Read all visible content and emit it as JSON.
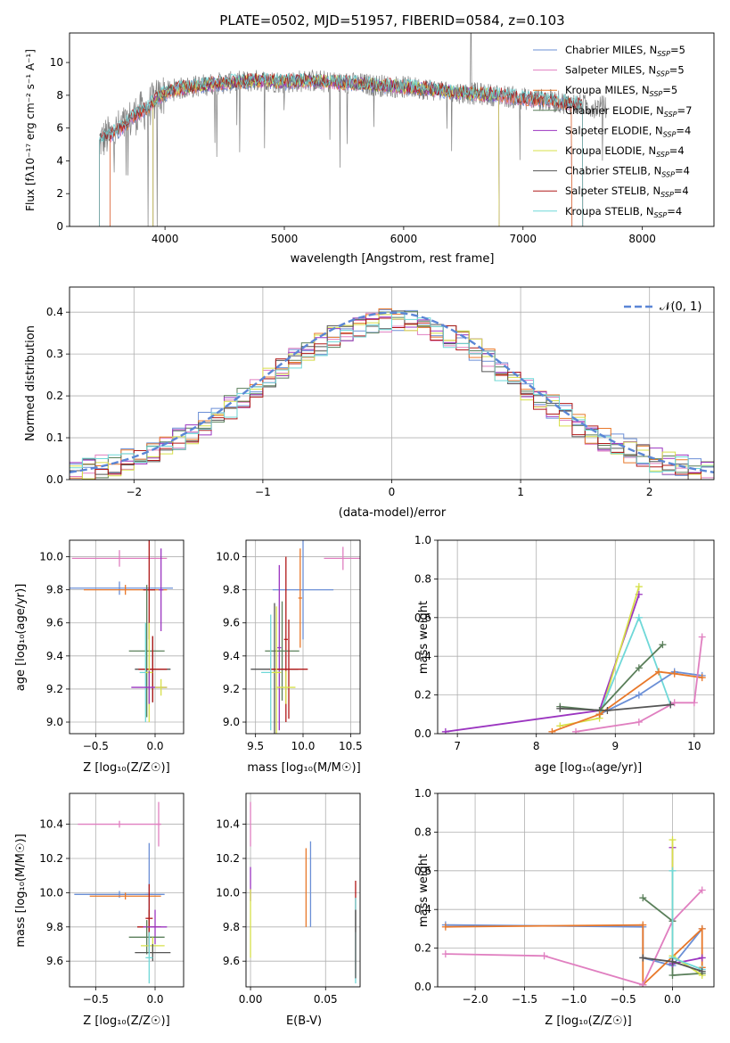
{
  "title": "PLATE=0502, MJD=51957, FIBERID=0584, z=0.103",
  "colors": {
    "Chabrier MILES": "#6b8fd6",
    "Salpeter MILES": "#e07fc0",
    "Kroupa MILES": "#e8782a",
    "Chabrier ELODIE": "#5a7f5a",
    "Salpeter ELODIE": "#9b35c0",
    "Kroupa ELODIE": "#d7e04a",
    "Chabrier STELIB": "#555555",
    "Salpeter STELIB": "#b01818",
    "Kroupa STELIB": "#6fd8d8",
    "data": "#808080",
    "gaussian": "#5b86d6"
  },
  "chart_data": [
    {
      "id": "spectrum",
      "type": "line",
      "title": "PLATE=0502, MJD=51957, FIBERID=0584, z=0.103",
      "xlabel": "wavelength [Angstrom, rest frame]",
      "ylabel": "Flux [fλ10⁻¹⁷ erg cm⁻² s⁻¹ A⁻¹]",
      "xlim": [
        3200,
        8600
      ],
      "ylim": [
        0,
        11.8
      ],
      "xticks": [
        4000,
        5000,
        6000,
        7000,
        8000
      ],
      "yticks": [
        0,
        2,
        4,
        6,
        8,
        10
      ],
      "legend": "top-right",
      "legend_entries": [
        "Chabrier MILES, N_SSP=5",
        "Salpeter MILES, N_SSP=5",
        "Kroupa MILES, N_SSP=5",
        "Chabrier ELODIE, N_SSP=7",
        "Salpeter ELODIE, N_SSP=4",
        "Kroupa ELODIE, N_SSP=4",
        "Chabrier STELIB, N_SSP=4",
        "Salpeter STELIB, N_SSP=4",
        "Kroupa STELIB, N_SSP=4"
      ],
      "continuum": [
        [
          3450,
          5.2
        ],
        [
          3550,
          5.6
        ],
        [
          3650,
          6.1
        ],
        [
          3750,
          6.8
        ],
        [
          3850,
          7.2
        ],
        [
          3950,
          7.9
        ],
        [
          4050,
          8.3
        ],
        [
          4200,
          8.5
        ],
        [
          4400,
          8.7
        ],
        [
          4600,
          8.8
        ],
        [
          4800,
          8.9
        ],
        [
          5000,
          8.8
        ],
        [
          5200,
          8.9
        ],
        [
          5400,
          8.8
        ],
        [
          5600,
          8.7
        ],
        [
          5800,
          8.6
        ],
        [
          6000,
          8.5
        ],
        [
          6200,
          8.4
        ],
        [
          6400,
          8.2
        ],
        [
          6600,
          8.1
        ],
        [
          6800,
          8.0
        ],
        [
          7000,
          7.8
        ],
        [
          7200,
          7.7
        ],
        [
          7400,
          7.5
        ],
        [
          7600,
          7.3
        ]
      ]
    },
    {
      "id": "residuals",
      "type": "line",
      "xlabel": "(data-model)/error",
      "ylabel": "Normed distribution",
      "xlim": [
        -2.5,
        2.5
      ],
      "ylim": [
        0,
        0.46
      ],
      "xticks": [
        -2,
        -1,
        0,
        1,
        2
      ],
      "yticks": [
        0.0,
        0.1,
        0.2,
        0.3,
        0.4
      ],
      "grid": true,
      "legend": "top-right",
      "legend_label": "𝒩(0, 1)",
      "histogram_bins": [
        -2.5,
        2.5,
        50
      ]
    },
    {
      "id": "age-vs-Z",
      "type": "scatter",
      "xlabel": "Z [log₁₀(Z/Z☉)]",
      "ylabel": "age  [log₁₀(age/yr)]",
      "xlim": [
        -0.72,
        0.24
      ],
      "ylim": [
        8.93,
        10.1
      ],
      "xticks": [
        -0.5,
        0.0
      ],
      "yticks": [
        9.0,
        9.2,
        9.4,
        9.6,
        9.8,
        10.0
      ],
      "grid": true,
      "points": [
        {
          "x": -0.3,
          "y": 9.99,
          "xerr": 0.4,
          "yerr": 0.05,
          "c": "Salpeter MILES"
        },
        {
          "x": -0.3,
          "y": 9.81,
          "xerr": 0.45,
          "yerr": 0.04,
          "c": "Chabrier MILES"
        },
        {
          "x": -0.25,
          "y": 9.8,
          "xerr": 0.35,
          "yerr": 0.03,
          "c": "Kroupa MILES"
        },
        {
          "x": -0.05,
          "y": 9.8,
          "xerr": 0.05,
          "yerr": 0.3,
          "c": "Salpeter STELIB"
        },
        {
          "x": 0.05,
          "y": 9.8,
          "xerr": 0.02,
          "yerr": 0.25,
          "c": "Salpeter ELODIE"
        },
        {
          "x": -0.07,
          "y": 9.43,
          "xerr": 0.15,
          "yerr": 0.4,
          "c": "Chabrier ELODIE"
        },
        {
          "x": -0.02,
          "y": 9.32,
          "xerr": 0.15,
          "yerr": 0.2,
          "c": "Chabrier STELIB"
        },
        {
          "x": -0.02,
          "y": 9.32,
          "xerr": 0.12,
          "yerr": 0.2,
          "c": "Salpeter STELIB"
        },
        {
          "x": -0.08,
          "y": 9.3,
          "xerr": 0.05,
          "yerr": 0.3,
          "c": "Kroupa STELIB"
        },
        {
          "x": -0.05,
          "y": 9.3,
          "xerr": 0.03,
          "yerr": 0.3,
          "c": "Kroupa ELODIE"
        },
        {
          "x": -0.05,
          "y": 9.21,
          "xerr": 0.15,
          "yerr": 0.1,
          "c": "Salpeter ELODIE"
        },
        {
          "x": 0.05,
          "y": 9.21,
          "xerr": 0.05,
          "yerr": 0.05,
          "c": "Kroupa ELODIE"
        }
      ]
    },
    {
      "id": "age-vs-mass",
      "type": "scatter",
      "xlabel": "mass [log₁₀(M/M☉)]",
      "ylabel": "",
      "xlim": [
        9.4,
        10.6
      ],
      "ylim": [
        8.93,
        10.1
      ],
      "xticks": [
        9.5,
        10.0,
        10.5
      ],
      "yticks": [
        9.0,
        9.2,
        9.4,
        9.6,
        9.8,
        10.0
      ],
      "grid": true,
      "points": [
        {
          "x": 10.42,
          "y": 9.99,
          "xerr": 0.2,
          "yerr": 0.07,
          "c": "Salpeter MILES"
        },
        {
          "x": 10.0,
          "y": 9.8,
          "xerr": 0.32,
          "yerr": 0.3,
          "c": "Chabrier MILES"
        },
        {
          "x": 9.97,
          "y": 9.75,
          "xerr": 0.02,
          "yerr": 0.3,
          "c": "Kroupa MILES"
        },
        {
          "x": 9.82,
          "y": 9.5,
          "xerr": 0.02,
          "yerr": 0.5,
          "c": "Salpeter STELIB"
        },
        {
          "x": 9.75,
          "y": 9.45,
          "xerr": 0.02,
          "yerr": 0.5,
          "c": "Salpeter ELODIE"
        },
        {
          "x": 9.78,
          "y": 9.43,
          "xerr": 0.18,
          "yerr": 0.3,
          "c": "Chabrier ELODIE"
        },
        {
          "x": 9.7,
          "y": 9.32,
          "xerr": 0.25,
          "yerr": 0.4,
          "c": "Chabrier STELIB"
        },
        {
          "x": 9.85,
          "y": 9.32,
          "xerr": 0.2,
          "yerr": 0.3,
          "c": "Salpeter STELIB"
        },
        {
          "x": 9.66,
          "y": 9.3,
          "xerr": 0.1,
          "yerr": 0.35,
          "c": "Kroupa STELIB"
        },
        {
          "x": 9.72,
          "y": 9.3,
          "xerr": 0.05,
          "yerr": 0.4,
          "c": "Kroupa ELODIE"
        },
        {
          "x": 9.82,
          "y": 9.21,
          "xerr": 0.1,
          "yerr": 0.1,
          "c": "Kroupa ELODIE"
        }
      ]
    },
    {
      "id": "mass-weight-vs-age",
      "type": "line",
      "xlabel": "age  [log₁₀(age/yr)]",
      "ylabel": "mass weight",
      "xlim": [
        6.75,
        10.25
      ],
      "ylim": [
        0,
        1.0
      ],
      "xticks": [
        7,
        8,
        9,
        10
      ],
      "yticks": [
        0.0,
        0.2,
        0.4,
        0.6,
        0.8,
        1.0
      ],
      "grid": true,
      "series": [
        {
          "c": "Salpeter ELODIE",
          "x": [
            6.85,
            8.8,
            9.3
          ],
          "y": [
            0.01,
            0.12,
            0.72
          ]
        },
        {
          "c": "Kroupa ELODIE",
          "x": [
            8.3,
            8.8,
            9.3
          ],
          "y": [
            0.04,
            0.08,
            0.76
          ]
        },
        {
          "c": "Kroupa STELIB",
          "x": [
            8.8,
            9.3,
            9.7
          ],
          "y": [
            0.1,
            0.6,
            0.15
          ]
        },
        {
          "c": "Chabrier ELODIE",
          "x": [
            8.3,
            8.8,
            9.3,
            9.6
          ],
          "y": [
            0.14,
            0.12,
            0.34,
            0.46
          ]
        },
        {
          "c": "Chabrier MILES",
          "x": [
            8.8,
            9.3,
            9.75,
            10.1
          ],
          "y": [
            0.1,
            0.2,
            0.32,
            0.3
          ]
        },
        {
          "c": "Kroupa MILES",
          "x": [
            8.2,
            8.8,
            9.55,
            9.75,
            10.1
          ],
          "y": [
            0.01,
            0.1,
            0.32,
            0.31,
            0.29
          ]
        },
        {
          "c": "Salpeter MILES",
          "x": [
            8.5,
            9.3,
            9.75,
            10.0,
            10.1
          ],
          "y": [
            0.01,
            0.06,
            0.16,
            0.16,
            0.5
          ]
        },
        {
          "c": "Chabrier STELIB",
          "x": [
            8.3,
            8.9,
            9.7
          ],
          "y": [
            0.13,
            0.12,
            0.15
          ]
        }
      ]
    },
    {
      "id": "mass-vs-Z",
      "type": "scatter",
      "xlabel": "Z [log₁₀(Z/Z☉)]",
      "ylabel": "mass [log₁₀(M/M☉)]",
      "xlim": [
        -0.72,
        0.24
      ],
      "ylim": [
        9.45,
        10.58
      ],
      "xticks": [
        -0.5,
        0.0
      ],
      "yticks": [
        9.6,
        9.8,
        10.0,
        10.2,
        10.4
      ],
      "grid": true,
      "points": [
        {
          "x": -0.3,
          "y": 10.4,
          "xerr": 0.35,
          "yerr": 0.02,
          "c": "Salpeter MILES"
        },
        {
          "x": 0.03,
          "y": 10.4,
          "xerr": 0.02,
          "yerr": 0.13,
          "c": "Salpeter MILES"
        },
        {
          "x": -0.3,
          "y": 9.99,
          "xerr": 0.38,
          "yerr": 0.02,
          "c": "Chabrier MILES"
        },
        {
          "x": -0.05,
          "y": 9.99,
          "xerr": 0.03,
          "yerr": 0.3,
          "c": "Chabrier MILES"
        },
        {
          "x": -0.25,
          "y": 9.98,
          "xerr": 0.3,
          "yerr": 0.02,
          "c": "Kroupa MILES"
        },
        {
          "x": -0.05,
          "y": 9.85,
          "xerr": 0.03,
          "yerr": 0.2,
          "c": "Salpeter STELIB"
        },
        {
          "x": -0.05,
          "y": 9.8,
          "xerr": 0.1,
          "yerr": 0.1,
          "c": "Salpeter STELIB"
        },
        {
          "x": 0.0,
          "y": 9.8,
          "xerr": 0.1,
          "yerr": 0.1,
          "c": "Salpeter ELODIE"
        },
        {
          "x": -0.07,
          "y": 9.74,
          "xerr": 0.15,
          "yerr": 0.1,
          "c": "Chabrier ELODIE"
        },
        {
          "x": -0.02,
          "y": 9.69,
          "xerr": 0.1,
          "yerr": 0.05,
          "c": "Kroupa ELODIE"
        },
        {
          "x": -0.02,
          "y": 9.65,
          "xerr": 0.15,
          "yerr": 0.05,
          "c": "Chabrier STELIB"
        },
        {
          "x": -0.05,
          "y": 9.62,
          "xerr": 0.03,
          "yerr": 0.15,
          "c": "Kroupa STELIB"
        }
      ]
    },
    {
      "id": "mass-vs-EBV",
      "type": "scatter",
      "xlabel": "E(B-V)",
      "ylabel": "",
      "xlim": [
        -0.003,
        0.073
      ],
      "ylim": [
        9.45,
        10.58
      ],
      "xticks": [
        0.0,
        0.05
      ],
      "yticks": [
        9.6,
        9.8,
        10.0,
        10.2,
        10.4
      ],
      "grid": true,
      "points": [
        {
          "x": 0.0,
          "y": 10.4,
          "xerr": 0,
          "yerr": 0.13,
          "c": "Salpeter MILES"
        },
        {
          "x": 0.0,
          "y": 10.05,
          "xerr": 0,
          "yerr": 0.1,
          "c": "Salpeter ELODIE"
        },
        {
          "x": 0.0,
          "y": 9.82,
          "xerr": 0,
          "yerr": 0.2,
          "c": "Kroupa ELODIE"
        },
        {
          "x": 0.037,
          "y": 10.03,
          "xerr": 0,
          "yerr": 0.23,
          "c": "Kroupa MILES"
        },
        {
          "x": 0.04,
          "y": 10.05,
          "xerr": 0,
          "yerr": 0.25,
          "c": "Chabrier MILES"
        },
        {
          "x": 0.07,
          "y": 9.92,
          "xerr": 0,
          "yerr": 0.15,
          "c": "Salpeter STELIB"
        },
        {
          "x": 0.07,
          "y": 9.72,
          "xerr": 0,
          "yerr": 0.25,
          "c": "Kroupa STELIB"
        },
        {
          "x": 0.07,
          "y": 9.7,
          "xerr": 0,
          "yerr": 0.2,
          "c": "Chabrier STELIB"
        }
      ]
    },
    {
      "id": "mass-weight-vs-Z",
      "type": "line",
      "xlabel": "Z [log₁₀(Z/Z☉)]",
      "ylabel": "mass weight",
      "xlim": [
        -2.38,
        0.42
      ],
      "ylim": [
        0,
        1.0
      ],
      "xticks": [
        -2.0,
        -1.5,
        -1.0,
        -0.5,
        0.0
      ],
      "yticks": [
        0.0,
        0.2,
        0.4,
        0.6,
        0.8,
        1.0
      ],
      "grid": true,
      "series": [
        {
          "c": "Chabrier MILES",
          "x": [
            -2.3,
            -0.3,
            -0.3,
            0.0,
            0.3
          ],
          "y": [
            0.32,
            0.31,
            0.15,
            0.11,
            0.3
          ]
        },
        {
          "c": "Kroupa MILES",
          "x": [
            -2.3,
            -0.3,
            -0.3,
            0.3,
            0.3
          ],
          "y": [
            0.31,
            0.32,
            0.01,
            0.3,
            0.1
          ]
        },
        {
          "c": "Salpeter MILES",
          "x": [
            -2.3,
            -1.3,
            -0.3,
            0.0,
            0.3
          ],
          "y": [
            0.17,
            0.16,
            0.01,
            0.34,
            0.5
          ]
        },
        {
          "c": "Chabrier ELODIE",
          "x": [
            -0.3,
            0.0,
            0.0,
            0.3
          ],
          "y": [
            0.46,
            0.34,
            0.06,
            0.07
          ]
        },
        {
          "c": "Salpeter ELODIE",
          "x": [
            0.0,
            0.0,
            0.3
          ],
          "y": [
            0.72,
            0.12,
            0.15
          ]
        },
        {
          "c": "Kroupa ELODIE",
          "x": [
            0.0,
            0.0,
            0.3
          ],
          "y": [
            0.76,
            0.16,
            0.06
          ]
        },
        {
          "c": "Kroupa STELIB",
          "x": [
            0.0,
            0.0,
            0.3
          ],
          "y": [
            0.6,
            0.15,
            0.09
          ]
        },
        {
          "c": "Chabrier STELIB",
          "x": [
            -0.3,
            0.0,
            0.3
          ],
          "y": [
            0.15,
            0.13,
            0.08
          ]
        }
      ]
    }
  ]
}
